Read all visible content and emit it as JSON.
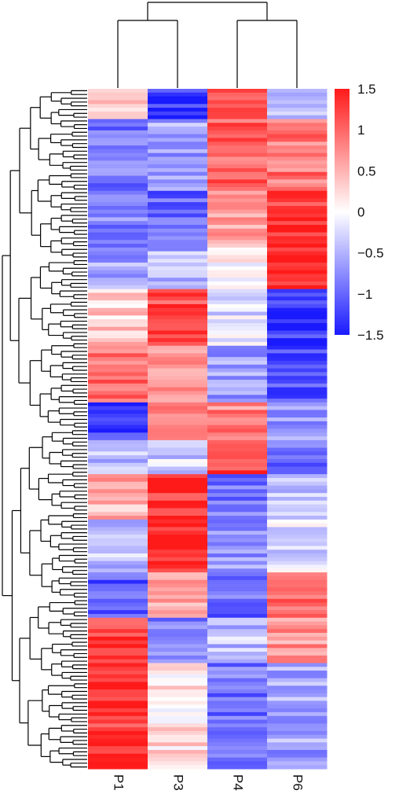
{
  "chart_data": {
    "type": "heatmap",
    "title": "",
    "xlabel": "",
    "ylabel": "",
    "columns": [
      "P1",
      "P3",
      "P4",
      "P6"
    ],
    "row_count": 180,
    "row_dendrogram": true,
    "column_dendrogram": true,
    "column_clusters": [
      [
        "P1",
        "P3"
      ],
      [
        "P4",
        "P6"
      ]
    ],
    "value_range": [
      -1.5,
      1.5
    ],
    "colorbar_ticks": [
      "1.5",
      "1",
      "0.5",
      "0",
      "−0.5",
      "−1",
      "−1.5"
    ],
    "colorbar_tick_values": [
      1.5,
      1,
      0.5,
      0,
      -0.5,
      -1,
      -1.5
    ],
    "colormap": {
      "low": "#1a1aff",
      "mid": "#ffffff",
      "high": "#ff1a1a"
    },
    "approx_blocks": [
      {
        "rows": "0-10",
        "values": [
          0.25,
          -1.3,
          1.2,
          -0.5
        ]
      },
      {
        "rows": "10-36",
        "values": [
          -0.9,
          -0.6,
          1.0,
          0.9
        ]
      },
      {
        "rows": "36-56",
        "values": [
          -0.8,
          -1.0,
          0.6,
          1.3
        ]
      },
      {
        "rows": "56-70",
        "values": [
          -0.6,
          -0.5,
          0.0,
          1.4
        ]
      },
      {
        "rows": "70-90",
        "values": [
          0.3,
          1.2,
          -0.2,
          -1.3
        ]
      },
      {
        "rows": "90-110",
        "values": [
          0.9,
          0.8,
          -0.6,
          -1.2
        ]
      },
      {
        "rows": "110-124",
        "values": [
          -1.2,
          0.7,
          0.8,
          -0.6
        ]
      },
      {
        "rows": "124-136",
        "values": [
          -0.5,
          -0.3,
          1.3,
          -0.9
        ]
      },
      {
        "rows": "136-152",
        "values": [
          0.5,
          1.3,
          -0.9,
          -0.4
        ]
      },
      {
        "rows": "152-170",
        "values": [
          -0.4,
          1.4,
          -0.7,
          -0.2
        ]
      },
      {
        "rows": "170-186",
        "values": [
          -1.1,
          0.6,
          -1.0,
          1.0
        ]
      },
      {
        "rows": "186-202",
        "values": [
          1.3,
          -0.8,
          -0.4,
          0.7
        ]
      },
      {
        "rows": "202-240",
        "values": [
          1.3,
          0.2,
          -0.9,
          -0.6
        ]
      }
    ]
  }
}
